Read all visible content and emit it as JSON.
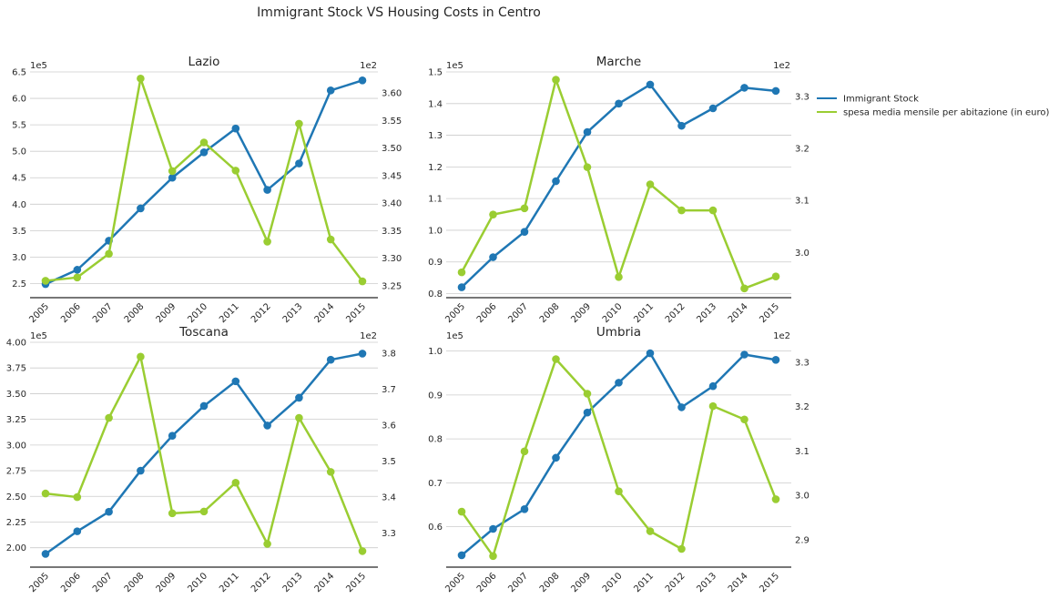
{
  "figure_title": "Immigrant Stock VS Housing Costs in Centro",
  "colors": {
    "immigrant": "#1f77b4",
    "housing": "#9acd32"
  },
  "chart_data": [
    {
      "type": "line",
      "title": "Lazio",
      "x": [
        "2005",
        "2006",
        "2007",
        "2008",
        "2009",
        "2010",
        "2011",
        "2012",
        "2013",
        "2014",
        "2015"
      ],
      "series": [
        {
          "name": "Immigrant Stock",
          "axis": "left",
          "values": [
            2.49,
            2.76,
            3.31,
            3.92,
            4.5,
            4.98,
            5.43,
            4.27,
            4.77,
            6.15,
            6.34
          ]
        },
        {
          "name": "spesa media mensile per abitazione (in euro)",
          "axis": "right",
          "values": [
            3.259,
            3.265,
            3.308,
            3.626,
            3.458,
            3.51,
            3.459,
            3.33,
            3.544,
            3.334,
            3.258
          ]
        }
      ],
      "left_offset": "1e5",
      "right_offset": "1e2",
      "yticks_left": [
        "2.5",
        "3.0",
        "3.5",
        "4.0",
        "4.5",
        "5.0",
        "5.5",
        "6.0",
        "6.5"
      ],
      "ylim_left": [
        2.25,
        6.5
      ],
      "yticks_right": [
        "3.25",
        "3.30",
        "3.35",
        "3.40",
        "3.45",
        "3.50",
        "3.55",
        "3.60"
      ],
      "ylim_right": [
        3.23,
        3.638
      ]
    },
    {
      "type": "line",
      "title": "Marche",
      "x": [
        "2005",
        "2006",
        "2007",
        "2008",
        "2009",
        "2010",
        "2011",
        "2012",
        "2013",
        "2014",
        "2015"
      ],
      "series": [
        {
          "name": "Immigrant Stock",
          "axis": "left",
          "values": [
            0.82,
            0.915,
            0.995,
            1.155,
            1.31,
            1.4,
            1.46,
            1.33,
            1.385,
            1.45,
            1.44
          ]
        },
        {
          "name": "spesa media mensile per abitazione (in euro)",
          "axis": "right",
          "values": [
            2.962,
            3.073,
            3.085,
            3.332,
            3.164,
            2.953,
            3.131,
            3.081,
            3.081,
            2.931,
            2.954
          ]
        }
      ],
      "left_offset": "1e5",
      "right_offset": "1e2",
      "yticks_left": [
        "0.8",
        "0.9",
        "1.0",
        "1.1",
        "1.2",
        "1.3",
        "1.4",
        "1.5"
      ],
      "ylim_left": [
        0.79,
        1.5
      ],
      "yticks_right": [
        "3.0",
        "3.1",
        "3.2",
        "3.3"
      ],
      "ylim_right": [
        2.915,
        3.347
      ]
    },
    {
      "type": "line",
      "title": "Toscana",
      "x": [
        "2005",
        "2006",
        "2007",
        "2008",
        "2009",
        "2010",
        "2011",
        "2012",
        "2013",
        "2014",
        "2015"
      ],
      "series": [
        {
          "name": "Immigrant Stock",
          "axis": "left",
          "values": [
            1.94,
            2.16,
            2.35,
            2.75,
            3.09,
            3.38,
            3.62,
            3.19,
            3.46,
            3.83,
            3.89
          ]
        },
        {
          "name": "spesa media mensile per abitazione (in euro)",
          "axis": "right",
          "values": [
            3.41,
            3.4,
            3.62,
            3.79,
            3.355,
            3.36,
            3.44,
            3.27,
            3.62,
            3.47,
            3.25
          ]
        }
      ],
      "left_offset": "1e5",
      "right_offset": "1e2",
      "yticks_left": [
        "2.00",
        "2.25",
        "2.50",
        "2.75",
        "3.00",
        "3.25",
        "3.50",
        "3.75",
        "4.00"
      ],
      "ylim_left": [
        1.82,
        4.0
      ],
      "yticks_right": [
        "3.3",
        "3.4",
        "3.5",
        "3.6",
        "3.7",
        "3.8"
      ],
      "ylim_right": [
        3.208,
        3.83
      ]
    },
    {
      "type": "line",
      "title": "Umbria",
      "x": [
        "2005",
        "2006",
        "2007",
        "2008",
        "2009",
        "2010",
        "2011",
        "2012",
        "2013",
        "2014",
        "2015"
      ],
      "series": [
        {
          "name": "Immigrant Stock",
          "axis": "left",
          "values": [
            0.535,
            0.595,
            0.64,
            0.757,
            0.86,
            0.928,
            0.995,
            0.872,
            0.92,
            0.992,
            0.98
          ]
        },
        {
          "name": "spesa media mensile per abitazione (in euro)",
          "axis": "right",
          "values": [
            2.963,
            2.863,
            3.099,
            3.307,
            3.229,
            3.009,
            2.919,
            2.879,
            3.201,
            3.171,
            2.991
          ]
        }
      ],
      "left_offset": "1e5",
      "right_offset": "1e2",
      "yticks_left": [
        "0.6",
        "0.7",
        "0.8",
        "0.9",
        "1.0"
      ],
      "ylim_left": [
        0.51,
        1.02
      ],
      "yticks_right": [
        "2.9",
        "3.0",
        "3.1",
        "3.2",
        "3.3"
      ],
      "ylim_right": [
        2.84,
        3.345
      ]
    }
  ],
  "legend": {
    "placement": "outside right of top-right subplot",
    "items": [
      {
        "label": "Immigrant Stock",
        "color": "#1f77b4"
      },
      {
        "label": "spesa media mensile per abitazione (in euro)",
        "color": "#9acd32"
      }
    ]
  }
}
